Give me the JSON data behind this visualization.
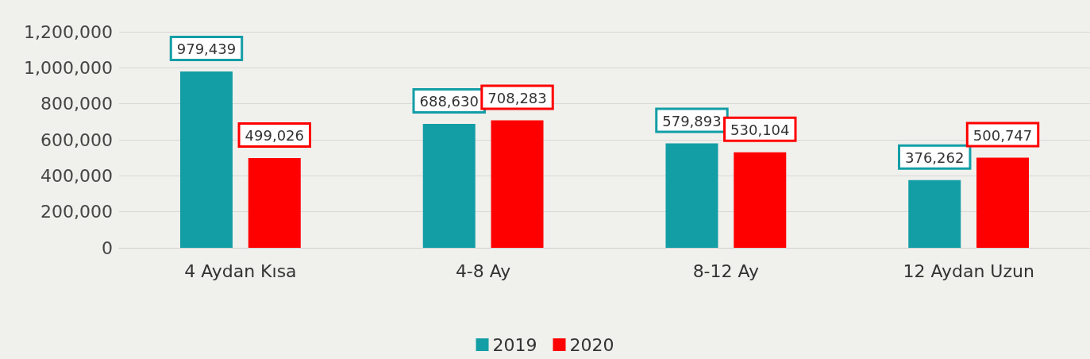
{
  "chart_data": {
    "type": "bar",
    "categories": [
      "4 Aydan Kısa",
      "4-8 Ay",
      "8-12 Ay",
      "12 Aydan Uzun"
    ],
    "series": [
      {
        "name": "2019",
        "color": "#139ea6",
        "values": [
          979439,
          688630,
          579893,
          376262
        ],
        "value_labels": [
          "979,439",
          "688,630",
          "579,893",
          "376,262"
        ]
      },
      {
        "name": "2020",
        "color": "#ff0000",
        "values": [
          499026,
          708283,
          530104,
          500747
        ],
        "value_labels": [
          "499,026",
          "708,283",
          "530,104",
          "500,747"
        ]
      }
    ],
    "ylim": [
      0,
      1200000
    ],
    "yticks": [
      {
        "value": 0,
        "label": "0"
      },
      {
        "value": 200000,
        "label": "200,000"
      },
      {
        "value": 400000,
        "label": "400,000"
      },
      {
        "value": 600000,
        "label": "600,000"
      },
      {
        "value": 800000,
        "label": "800,000"
      },
      {
        "value": 1000000,
        "label": "1,000,000"
      },
      {
        "value": 1200000,
        "label": "1,200,000"
      }
    ],
    "grid": "y",
    "legend": "bottom"
  }
}
